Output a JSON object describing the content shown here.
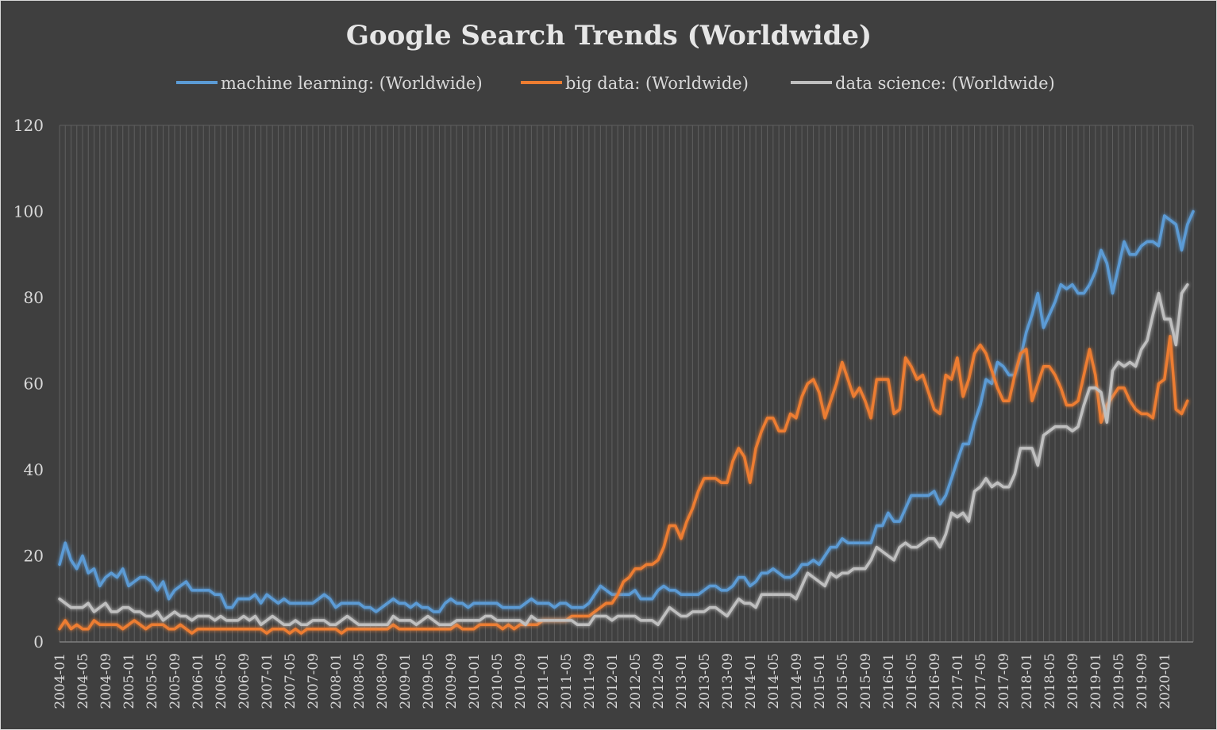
{
  "chart_data": {
    "type": "line",
    "title": "Google Search Trends (Worldwide)",
    "xlabel": "",
    "ylabel": "",
    "x_start": "2004-01",
    "x_end": "2020-02",
    "ylim": [
      0,
      120
    ],
    "yticks": [
      0,
      20,
      40,
      60,
      80,
      100,
      120
    ],
    "xtick_labels": [
      "2004-01",
      "2004-05",
      "2004-09",
      "2005-01",
      "2005-05",
      "2005-09",
      "2006-01",
      "2006-05",
      "2006-09",
      "2007-01",
      "2007-05",
      "2007-09",
      "2008-01",
      "2008-05",
      "2008-09",
      "2009-01",
      "2009-05",
      "2009-09",
      "2010-01",
      "2010-05",
      "2010-09",
      "2011-01",
      "2011-05",
      "2011-09",
      "2012-01",
      "2012-05",
      "2012-09",
      "2013-01",
      "2013-05",
      "2013-09",
      "2014-01",
      "2014-05",
      "2014-09",
      "2015-01",
      "2015-05",
      "2015-09",
      "2016-01",
      "2016-05",
      "2016-09",
      "2017-01",
      "2017-05",
      "2017-09",
      "2018-01",
      "2018-05",
      "2018-09",
      "2019-01",
      "2019-05",
      "2019-09",
      "2020-01"
    ],
    "grid": "vertical monthly gridlines",
    "legend": "top",
    "series": [
      {
        "name": "machine learning: (Worldwide)",
        "color": "#5b9bd5",
        "values": [
          18,
          23,
          19,
          17,
          20,
          16,
          17,
          13,
          15,
          16,
          15,
          17,
          13,
          14,
          15,
          15,
          14,
          12,
          14,
          10,
          12,
          13,
          14,
          12,
          12,
          12,
          12,
          11,
          11,
          8,
          8,
          10,
          10,
          10,
          11,
          9,
          11,
          10,
          9,
          10,
          9,
          9,
          9,
          9,
          9,
          10,
          11,
          10,
          8,
          9,
          9,
          9,
          9,
          8,
          8,
          7,
          8,
          9,
          10,
          9,
          9,
          8,
          9,
          8,
          8,
          7,
          7,
          9,
          10,
          9,
          9,
          8,
          9,
          9,
          9,
          9,
          9,
          8,
          8,
          8,
          8,
          9,
          10,
          9,
          9,
          9,
          8,
          9,
          9,
          8,
          8,
          8,
          9,
          11,
          13,
          12,
          11,
          11,
          11,
          11,
          12,
          10,
          10,
          10,
          12,
          13,
          12,
          12,
          11,
          11,
          11,
          11,
          12,
          13,
          13,
          12,
          12,
          13,
          15,
          15,
          13,
          14,
          16,
          16,
          17,
          16,
          15,
          15,
          16,
          18,
          18,
          19,
          18,
          20,
          22,
          22,
          24,
          23,
          23,
          23,
          23,
          23,
          27,
          27,
          30,
          28,
          28,
          31,
          34,
          34,
          34,
          34,
          35,
          32,
          34,
          38,
          42,
          46,
          46,
          51,
          55,
          61,
          60,
          65,
          64,
          62,
          62,
          66,
          72,
          76,
          81,
          73,
          76,
          79,
          83,
          82,
          83,
          81,
          81,
          83,
          86,
          91,
          88,
          81,
          87,
          93,
          90,
          90,
          92,
          93,
          93,
          92,
          99,
          98,
          97,
          91,
          97,
          100
        ]
      },
      {
        "name": "big data: (Worldwide)",
        "color": "#ed7d31",
        "values": [
          3,
          5,
          3,
          4,
          3,
          3,
          5,
          4,
          4,
          4,
          4,
          3,
          4,
          5,
          4,
          3,
          4,
          4,
          4,
          3,
          3,
          4,
          3,
          2,
          3,
          3,
          3,
          3,
          3,
          3,
          3,
          3,
          3,
          3,
          3,
          3,
          2,
          3,
          3,
          3,
          2,
          3,
          2,
          3,
          3,
          3,
          3,
          3,
          3,
          2,
          3,
          3,
          3,
          3,
          3,
          3,
          3,
          3,
          4,
          3,
          3,
          3,
          3,
          3,
          3,
          3,
          3,
          3,
          3,
          4,
          3,
          3,
          3,
          4,
          4,
          4,
          4,
          3,
          4,
          3,
          4,
          4,
          4,
          4,
          5,
          5,
          5,
          5,
          5,
          6,
          6,
          6,
          6,
          7,
          8,
          9,
          9,
          11,
          14,
          15,
          17,
          17,
          18,
          18,
          19,
          22,
          27,
          27,
          24,
          28,
          31,
          35,
          38,
          38,
          38,
          37,
          37,
          42,
          45,
          43,
          37,
          45,
          49,
          52,
          52,
          49,
          49,
          53,
          52,
          57,
          60,
          61,
          58,
          52,
          56,
          60,
          65,
          61,
          57,
          59,
          56,
          52,
          61,
          61,
          61,
          53,
          54,
          66,
          64,
          61,
          62,
          58,
          54,
          53,
          62,
          61,
          66,
          57,
          61,
          67,
          69,
          67,
          63,
          59,
          56,
          56,
          62,
          67,
          68,
          56,
          60,
          64,
          64,
          62,
          59,
          55,
          55,
          56,
          62,
          68,
          62,
          51,
          55,
          57,
          59,
          59,
          56,
          54,
          53,
          53,
          52,
          60,
          61,
          71,
          54,
          53,
          56
        ]
      },
      {
        "name": "data science: (Worldwide)",
        "color": "#bfbfbf",
        "values": [
          10,
          9,
          8,
          8,
          8,
          9,
          7,
          8,
          9,
          7,
          7,
          8,
          8,
          7,
          7,
          6,
          6,
          7,
          5,
          6,
          7,
          6,
          6,
          5,
          6,
          6,
          6,
          5,
          6,
          5,
          5,
          5,
          6,
          5,
          6,
          4,
          5,
          6,
          5,
          4,
          4,
          5,
          4,
          4,
          5,
          5,
          5,
          4,
          4,
          5,
          6,
          5,
          4,
          4,
          4,
          4,
          4,
          4,
          6,
          5,
          5,
          5,
          4,
          5,
          6,
          5,
          4,
          4,
          4,
          5,
          5,
          5,
          5,
          5,
          6,
          6,
          5,
          5,
          5,
          5,
          5,
          4,
          6,
          5,
          5,
          5,
          5,
          5,
          5,
          5,
          4,
          4,
          4,
          6,
          6,
          6,
          5,
          6,
          6,
          6,
          6,
          5,
          5,
          5,
          4,
          6,
          8,
          7,
          6,
          6,
          7,
          7,
          7,
          8,
          8,
          7,
          6,
          8,
          10,
          9,
          9,
          8,
          11,
          11,
          11,
          11,
          11,
          11,
          10,
          13,
          16,
          15,
          14,
          13,
          16,
          15,
          16,
          16,
          17,
          17,
          17,
          19,
          22,
          21,
          20,
          19,
          22,
          23,
          22,
          22,
          23,
          24,
          24,
          22,
          25,
          30,
          29,
          30,
          28,
          35,
          36,
          38,
          36,
          37,
          36,
          36,
          39,
          45,
          45,
          45,
          41,
          48,
          49,
          50,
          50,
          50,
          49,
          50,
          55,
          59,
          59,
          58,
          51,
          63,
          65,
          64,
          65,
          64,
          68,
          70,
          76,
          81,
          75,
          75,
          69,
          81,
          83
        ]
      }
    ]
  }
}
